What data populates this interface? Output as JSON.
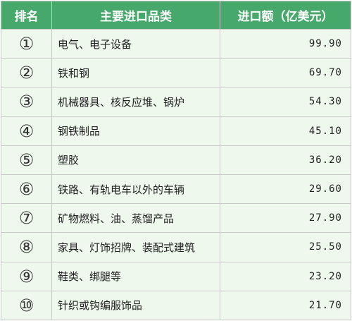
{
  "header": {
    "rank": "排名",
    "category": "主要进口品类",
    "amount": "进口额（亿美元）"
  },
  "rows": [
    {
      "rank": "①",
      "category": "电气、电子设备",
      "amount": "99.90"
    },
    {
      "rank": "②",
      "category": "铁和钢",
      "amount": "69.70"
    },
    {
      "rank": "③",
      "category": "机械器具、核反应堆、锅炉",
      "amount": "54.30"
    },
    {
      "rank": "④",
      "category": "钢铁制品",
      "amount": "45.10"
    },
    {
      "rank": "⑤",
      "category": "塑胶",
      "amount": "36.20"
    },
    {
      "rank": "⑥",
      "category": "铁路、有轨电车以外的车辆",
      "amount": "29.60"
    },
    {
      "rank": "⑦",
      "category": "矿物燃料、油、蒸馏产品",
      "amount": "27.90"
    },
    {
      "rank": "⑧",
      "category": "家具、灯饰招牌、装配式建筑",
      "amount": "25.50"
    },
    {
      "rank": "⑨",
      "category": "鞋类、绑腿等",
      "amount": "23.20"
    },
    {
      "rank": "⑩",
      "category": "针织或钩编服饰品",
      "amount": "21.70"
    }
  ],
  "colors": {
    "header_bg": "#47a86b",
    "row_bg": "#eef8ed",
    "border": "#c9c9c9"
  }
}
